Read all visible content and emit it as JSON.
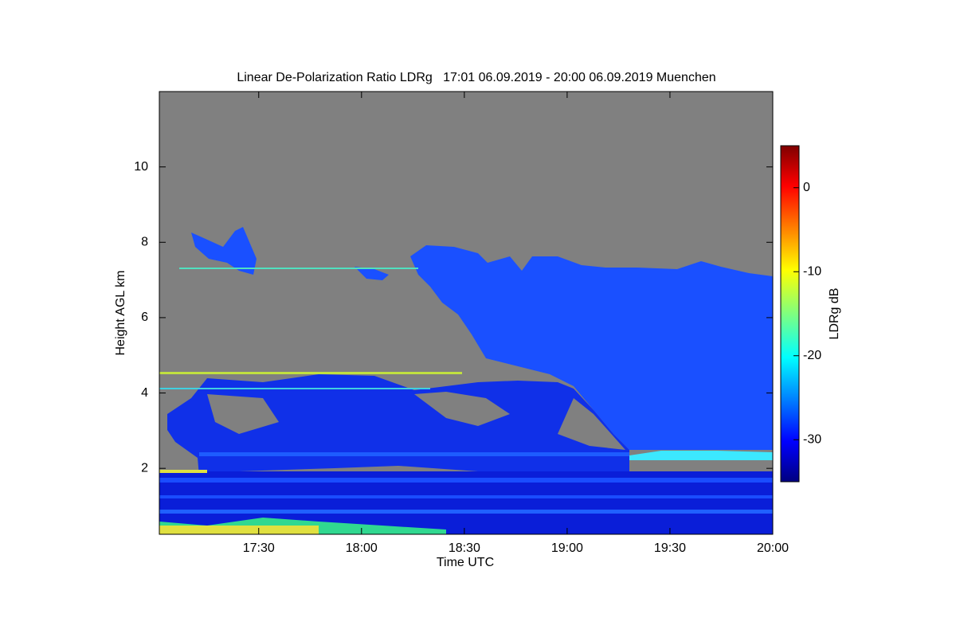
{
  "chart_data": {
    "type": "heatmap",
    "title": "Linear De-Polarization Ratio LDRg   17:01 06.09.2019 - 20:00 06.09.2019 Muenchen",
    "xlabel": "Time UTC",
    "ylabel": "Height AGL km",
    "xlim": [
      17.0167,
      20.0
    ],
    "xticks": [
      {
        "value": 17.5,
        "label": "17:30"
      },
      {
        "value": 18.0,
        "label": "18:00"
      },
      {
        "value": 18.5,
        "label": "18:30"
      },
      {
        "value": 19.0,
        "label": "19:00"
      },
      {
        "value": 19.5,
        "label": "19:30"
      },
      {
        "value": 20.0,
        "label": "20:00"
      }
    ],
    "ylim": [
      0.25,
      12
    ],
    "yticks": [
      2,
      4,
      6,
      8,
      10
    ],
    "colorbar_label": "LDRg dB",
    "clim": [
      -35,
      5
    ],
    "cticks": [
      0,
      -10,
      -20,
      -30
    ]
  }
}
